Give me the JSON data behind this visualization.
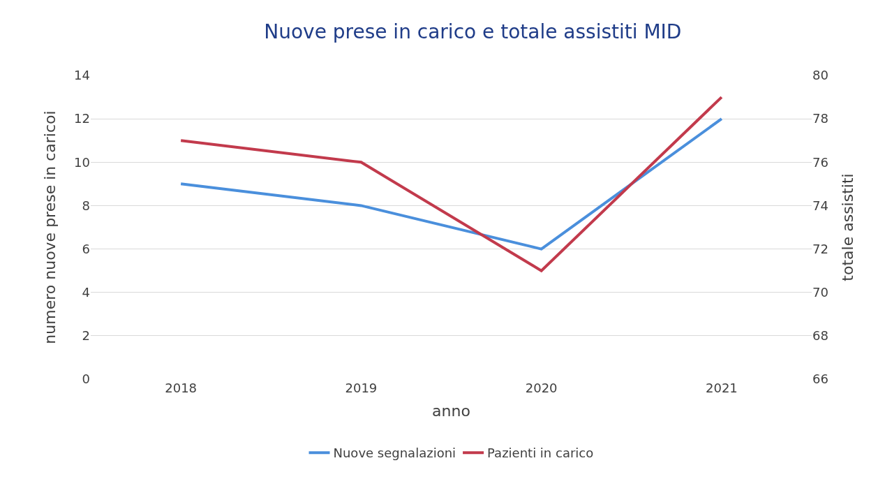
{
  "chart_data": {
    "type": "line",
    "title": "Nuove prese in carico e totale assistiti MID",
    "xlabel": "anno",
    "ylabel": "numero nuove prese in caricoi",
    "y2label": "totale assistiti",
    "categories": [
      "2018",
      "2019",
      "2020",
      "2021"
    ],
    "series": [
      {
        "name": "Nuove segnalazioni",
        "color": "#4a8fdc",
        "values": [
          9,
          8,
          6,
          12
        ]
      },
      {
        "name": "Pazienti in carico",
        "color": "#c23a4c",
        "values": [
          77,
          76,
          71,
          79
        ],
        "axis": "y2"
      }
    ],
    "ylim": [
      0,
      14
    ],
    "yticks": [
      0,
      2,
      4,
      6,
      8,
      10,
      12,
      14
    ],
    "y2lim": [
      66,
      80
    ],
    "y2ticks": [
      66,
      68,
      70,
      72,
      74,
      76,
      78,
      80
    ],
    "grid": "y",
    "legend": "bottom",
    "marker": "none",
    "line_style": "solid"
  }
}
